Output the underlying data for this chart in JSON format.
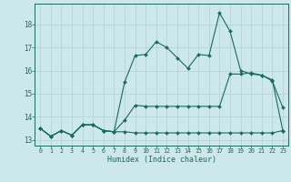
{
  "xlabel": "Humidex (Indice chaleur)",
  "bg_color": "#cce8ea",
  "grid_color": "#b8d8db",
  "line_color": "#1a6b5a",
  "x_values": [
    0,
    1,
    2,
    3,
    4,
    5,
    6,
    7,
    8,
    9,
    10,
    11,
    12,
    13,
    14,
    15,
    16,
    17,
    18,
    19,
    20,
    21,
    22,
    23
  ],
  "line1": [
    13.5,
    13.15,
    13.4,
    13.2,
    13.65,
    13.65,
    13.4,
    13.35,
    15.5,
    16.65,
    16.7,
    17.25,
    17.0,
    16.55,
    16.1,
    16.7,
    16.65,
    18.5,
    17.7,
    16.0,
    15.85,
    15.8,
    15.55,
    14.4
  ],
  "line2": [
    13.5,
    13.15,
    13.4,
    13.2,
    13.65,
    13.65,
    13.4,
    13.35,
    13.85,
    14.5,
    14.45,
    14.45,
    14.45,
    14.45,
    14.45,
    14.45,
    14.45,
    14.45,
    15.85,
    15.85,
    15.9,
    15.8,
    15.6,
    13.4
  ],
  "line3": [
    13.5,
    13.15,
    13.4,
    13.2,
    13.65,
    13.65,
    13.4,
    13.35,
    13.35,
    13.3,
    13.3,
    13.3,
    13.3,
    13.3,
    13.3,
    13.3,
    13.3,
    13.3,
    13.3,
    13.3,
    13.3,
    13.3,
    13.3,
    13.4
  ],
  "yticks": [
    13,
    14,
    15,
    16,
    17,
    18
  ],
  "xticks": [
    0,
    1,
    2,
    3,
    4,
    5,
    6,
    7,
    8,
    9,
    10,
    11,
    12,
    13,
    14,
    15,
    16,
    17,
    18,
    19,
    20,
    21,
    22,
    23
  ],
  "ylim": [
    12.75,
    18.9
  ],
  "xlim": [
    -0.5,
    23.5
  ]
}
